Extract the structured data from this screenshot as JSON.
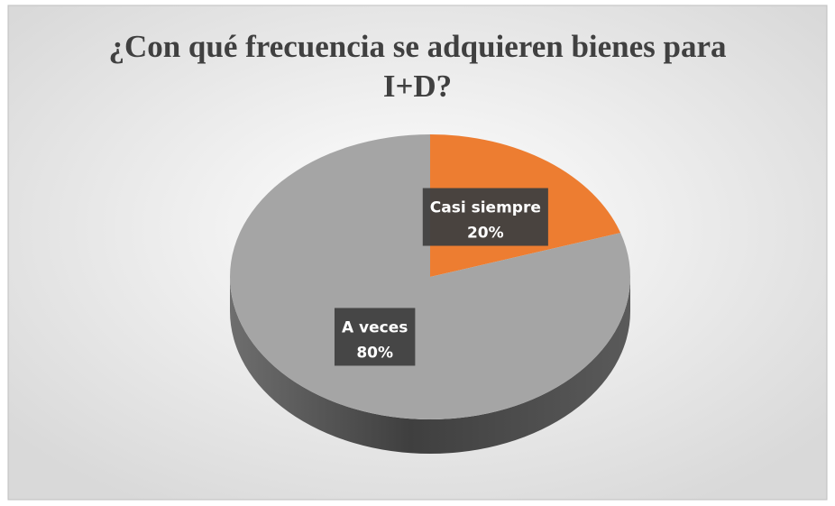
{
  "chart_data": {
    "type": "pie",
    "title": "¿Con qué frecuencia se adquieren bienes para I+D?",
    "categories": [
      "Casi siempre",
      "A veces"
    ],
    "values": [
      20,
      80
    ],
    "value_labels": [
      "20%",
      "80%"
    ],
    "colors": [
      "#ED7D31",
      "#A5A5A5"
    ]
  }
}
